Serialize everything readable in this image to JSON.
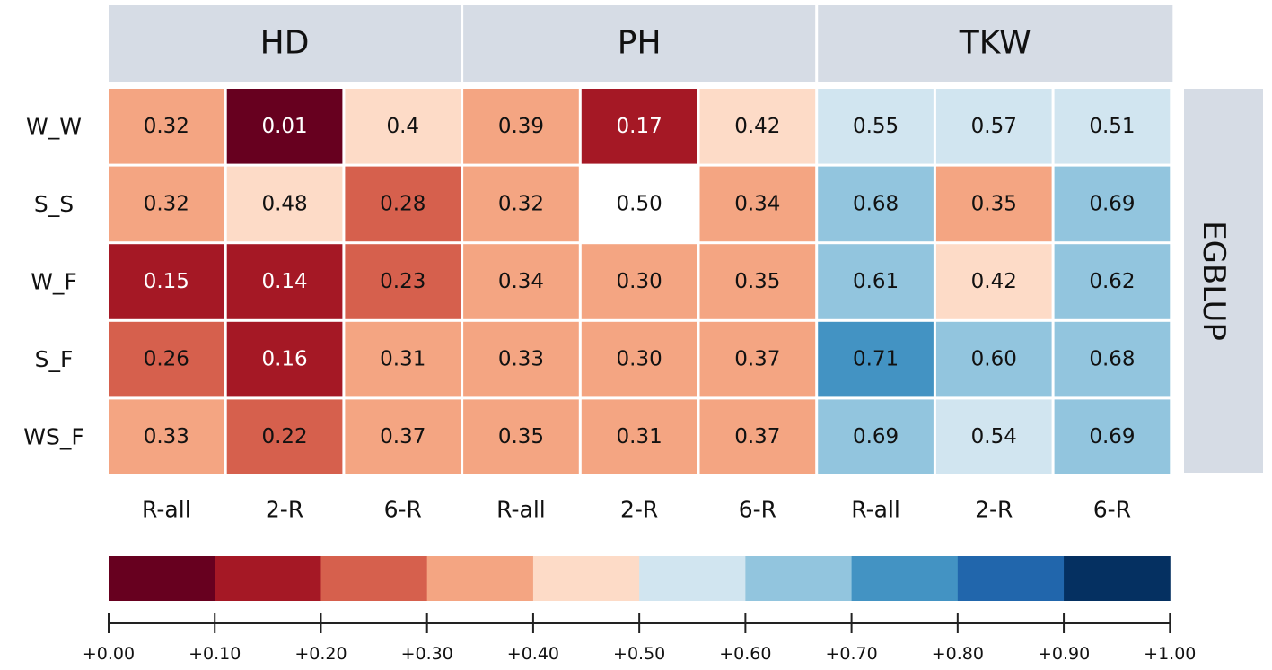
{
  "chart_data": {
    "type": "heatmap",
    "method_label": "EGBLUP",
    "groups": [
      "HD",
      "PH",
      "TKW"
    ],
    "columns": [
      "R-all",
      "2-R",
      "6-R",
      "R-all",
      "2-R",
      "6-R",
      "R-all",
      "2-R",
      "6-R"
    ],
    "rows": [
      "W_W",
      "S_S",
      "W_F",
      "S_F",
      "WS_F"
    ],
    "values": [
      [
        0.32,
        0.01,
        0.4,
        0.39,
        0.17,
        0.42,
        0.55,
        0.57,
        0.51
      ],
      [
        0.32,
        0.48,
        0.28,
        0.32,
        0.5,
        0.34,
        0.68,
        0.35,
        0.69
      ],
      [
        0.15,
        0.14,
        0.23,
        0.34,
        0.3,
        0.35,
        0.61,
        0.42,
        0.62
      ],
      [
        0.26,
        0.16,
        0.31,
        0.33,
        0.3,
        0.37,
        0.71,
        0.6,
        0.68
      ],
      [
        0.33,
        0.22,
        0.37,
        0.35,
        0.31,
        0.37,
        0.69,
        0.54,
        0.69
      ]
    ],
    "value_labels": [
      [
        "0.32",
        "0.01",
        "0.4",
        "0.39",
        "0.17",
        "0.42",
        "0.55",
        "0.57",
        "0.51"
      ],
      [
        "0.32",
        "0.48",
        "0.28",
        "0.32",
        "0.50",
        "0.34",
        "0.68",
        "0.35",
        "0.69"
      ],
      [
        "0.15",
        "0.14",
        "0.23",
        "0.34",
        "0.30",
        "0.35",
        "0.61",
        "0.42",
        "0.62"
      ],
      [
        "0.26",
        "0.16",
        "0.31",
        "0.33",
        "0.30",
        "0.37",
        "0.71",
        "0.60",
        "0.68"
      ],
      [
        "0.33",
        "0.22",
        "0.37",
        "0.35",
        "0.31",
        "0.37",
        "0.69",
        "0.54",
        "0.69"
      ]
    ],
    "scale": {
      "range": [
        0.0,
        1.0
      ],
      "bins": [
        {
          "from": 0.0,
          "to": 0.1,
          "color": "#67001f"
        },
        {
          "from": 0.1,
          "to": 0.2,
          "color": "#a51825"
        },
        {
          "from": 0.2,
          "to": 0.3,
          "color": "#d6604d"
        },
        {
          "from": 0.3,
          "to": 0.4,
          "color": "#f4a582"
        },
        {
          "from": 0.4,
          "to": 0.5,
          "color": "#fddbc7"
        },
        {
          "from": 0.5,
          "to": 0.6,
          "color": "#d1e5f0"
        },
        {
          "from": 0.6,
          "to": 0.7,
          "color": "#92c5de"
        },
        {
          "from": 0.7,
          "to": 0.8,
          "color": "#4393c3"
        },
        {
          "from": 0.8,
          "to": 0.9,
          "color": "#2166ac"
        },
        {
          "from": 0.9,
          "to": 1.0,
          "color": "#053061"
        }
      ],
      "tick_labels": [
        "+0.00",
        "+0.10",
        "+0.20",
        "+0.30",
        "+0.40",
        "+0.50",
        "+0.60",
        "+0.70",
        "+0.80",
        "+0.90",
        "+1.00"
      ]
    },
    "neutral_color": "#ffffff",
    "header_color": "#d6dce5"
  }
}
